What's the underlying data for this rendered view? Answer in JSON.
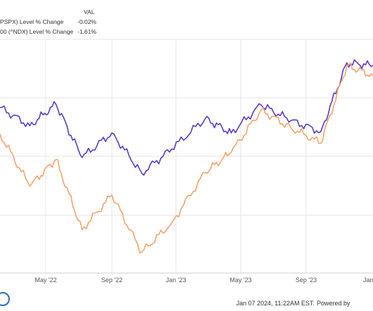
{
  "chart_data": {
    "type": "line",
    "legend": {
      "header": "VAL",
      "entries": [
        {
          "name": "PSPX) Level % Change",
          "value": "-0.02%",
          "color": "#5a3bcc"
        },
        {
          "name": "00 (^NDX) Level % Change",
          "value": "-1.61%",
          "color": "#f5a36c"
        }
      ]
    },
    "x_tick_labels": [
      "May '22",
      "Sep '22",
      "Jan '23",
      "May '23",
      "Sep '23",
      "Jan"
    ],
    "grid": true,
    "series": [
      {
        "name": "PSPX) Level % Change",
        "color": "#5a3bcc",
        "x": [
          0,
          0.08,
          0.15,
          0.22,
          0.3,
          0.38,
          0.46,
          0.55,
          0.62,
          0.7,
          0.78,
          0.86,
          0.93,
          1.0
        ],
        "values": [
          -6.5,
          -9.3,
          -6.0,
          -14.2,
          -10.4,
          -16.6,
          -12.9,
          -8.2,
          -10.4,
          -6.1,
          -8.5,
          -10.2,
          0.4,
          -0.02
        ]
      },
      {
        "name": "00 (^NDX) Level % Change",
        "color": "#f5a36c",
        "x": [
          0,
          0.08,
          0.15,
          0.22,
          0.3,
          0.38,
          0.46,
          0.55,
          0.62,
          0.7,
          0.78,
          0.86,
          0.93,
          1.0
        ],
        "values": [
          -10.6,
          -18.6,
          -14.5,
          -25.3,
          -20.0,
          -28.8,
          -24.3,
          -16.5,
          -13.4,
          -6.9,
          -9.6,
          -12.0,
          0.0,
          -1.61
        ]
      }
    ]
  },
  "footer": {
    "timestamp": "Jan 07 2024, 11:22AM EST.",
    "powered": "Powered by"
  }
}
